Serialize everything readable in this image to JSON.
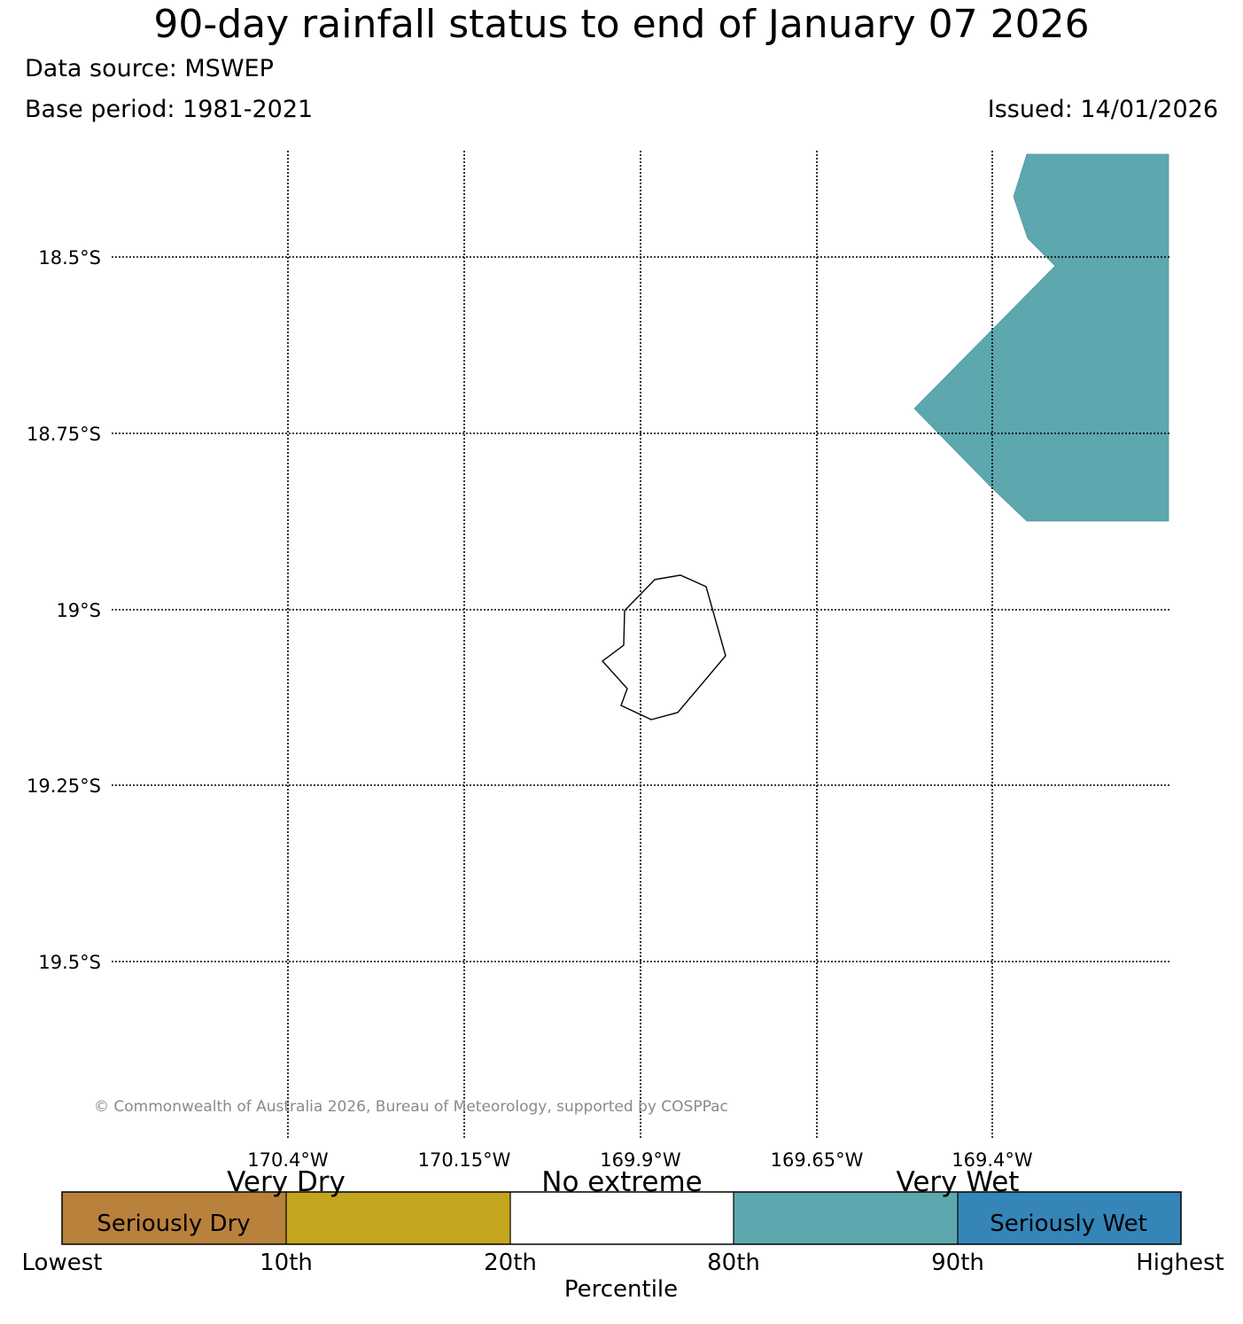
{
  "header": {
    "title": "90-day rainfall status to end of January 07 2026",
    "data_source": "Data source: MSWEP",
    "base_period": "Base period: 1981-2021",
    "issued": "Issued: 14/01/2026"
  },
  "map": {
    "lat_labels": [
      "18.5°S",
      "18.75°S",
      "19°S",
      "19.25°S",
      "19.5°S"
    ],
    "lon_labels": [
      "170.4°W",
      "170.15°W",
      "169.9°W",
      "169.65°W",
      "169.4°W"
    ],
    "copyright": "© Commonwealth of Australia 2026, Bureau of Meteorology, supported by COSPPac",
    "colors": {
      "very_wet_region": "#5ca8ae",
      "coastline": "#000000",
      "gridline": "#000000"
    }
  },
  "legend": {
    "categories": [
      {
        "name": "Seriously Dry",
        "color": "#b8813c"
      },
      {
        "name": "Very Dry",
        "color": "#c4a51e"
      },
      {
        "name": "No extreme",
        "color": "#ffffff"
      },
      {
        "name": "Very Wet",
        "color": "#5ca8ae"
      },
      {
        "name": "Seriously Wet",
        "color": "#3585b8"
      }
    ],
    "top_labels": [
      "Very Dry",
      "No extreme",
      "Very Wet"
    ],
    "inner_labels": [
      "Seriously Dry",
      "Seriously Wet"
    ],
    "ticks": [
      "Lowest",
      "10th",
      "20th",
      "80th",
      "90th",
      "Highest"
    ],
    "axis_label": "Percentile"
  }
}
